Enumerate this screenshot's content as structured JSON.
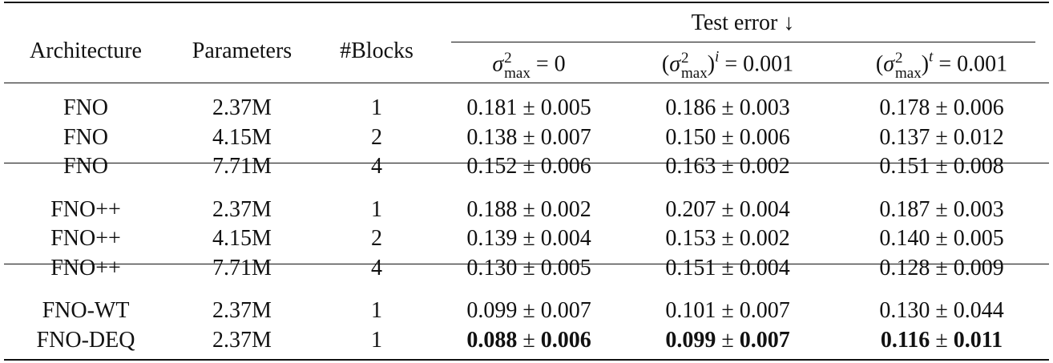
{
  "table": {
    "header": {
      "architecture": "Architecture",
      "parameters": "Parameters",
      "blocks": "#Blocks",
      "test_error": "Test error ↓",
      "columns": [
        {
          "pre": "",
          "base": "σ",
          "sup": "2",
          "sub": "max",
          "post": "",
          "outer_sup": "",
          "rest": " = 0"
        },
        {
          "pre": "(",
          "base": "σ",
          "sup": "2",
          "sub": "max",
          "post": ")",
          "outer_sup": "i",
          "rest": " = 0.001"
        },
        {
          "pre": "(",
          "base": "σ",
          "sup": "2",
          "sub": "max",
          "post": ")",
          "outer_sup": "t",
          "rest": " = 0.001"
        }
      ]
    },
    "pm_symbol": "±",
    "groups": [
      [
        {
          "architecture": "FNO",
          "parameters": "2.37M",
          "blocks": "1",
          "errors": [
            [
              "0.181",
              "0.005"
            ],
            [
              "0.186",
              "0.003"
            ],
            [
              "0.178",
              "0.006"
            ]
          ]
        },
        {
          "architecture": "FNO",
          "parameters": "4.15M",
          "blocks": "2",
          "errors": [
            [
              "0.138",
              "0.007"
            ],
            [
              "0.150",
              "0.006"
            ],
            [
              "0.137",
              "0.012"
            ]
          ]
        },
        {
          "architecture": "FNO",
          "parameters": "7.71M",
          "blocks": "4",
          "errors": [
            [
              "0.152",
              "0.006"
            ],
            [
              "0.163",
              "0.002"
            ],
            [
              "0.151",
              "0.008"
            ]
          ]
        }
      ],
      [
        {
          "architecture": "FNO++",
          "parameters": "2.37M",
          "blocks": "1",
          "errors": [
            [
              "0.188",
              "0.002"
            ],
            [
              "0.207",
              "0.004"
            ],
            [
              "0.187",
              "0.003"
            ]
          ]
        },
        {
          "architecture": "FNO++",
          "parameters": "4.15M",
          "blocks": "2",
          "errors": [
            [
              "0.139",
              "0.004"
            ],
            [
              "0.153",
              "0.002"
            ],
            [
              "0.140",
              "0.005"
            ]
          ]
        },
        {
          "architecture": "FNO++",
          "parameters": "7.71M",
          "blocks": "4",
          "errors": [
            [
              "0.130",
              "0.005"
            ],
            [
              "0.151",
              "0.004"
            ],
            [
              "0.128",
              "0.009"
            ]
          ]
        }
      ],
      [
        {
          "architecture": "FNO-WT",
          "parameters": "2.37M",
          "blocks": "1",
          "errors": [
            [
              "0.099",
              "0.007"
            ],
            [
              "0.101",
              "0.007"
            ],
            [
              "0.130",
              "0.044"
            ]
          ]
        },
        {
          "architecture": "FNO-DEQ",
          "parameters": "2.37M",
          "blocks": "1",
          "bold": true,
          "errors": [
            [
              "0.088",
              "0.006"
            ],
            [
              "0.099",
              "0.007"
            ],
            [
              "0.116",
              "0.011"
            ]
          ]
        }
      ]
    ]
  }
}
